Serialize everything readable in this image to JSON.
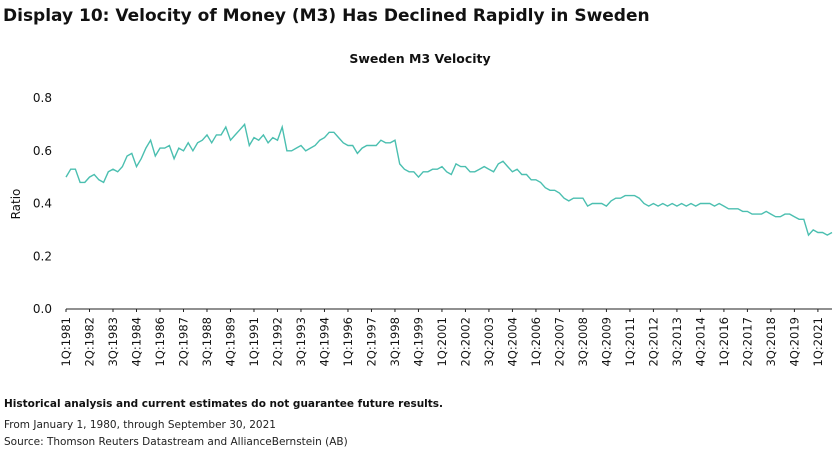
{
  "display_title": "Display 10: Velocity of Money (M3) Has Declined Rapidly in Sweden",
  "notes": {
    "disclaimer": "Historical analysis and current estimates do not guarantee future results.",
    "period": "From January 1, 1980, through September 30, 2021",
    "source": "Source: Thomson Reuters Datastream and AllianceBernstein (AB)"
  },
  "colors": {
    "line": "#4bbfb0",
    "axis": "#222222",
    "text": "#111111"
  },
  "chart_data": {
    "type": "line",
    "title": "Sweden M3 Velocity",
    "xlabel": "",
    "ylabel": "Ratio",
    "ylim": [
      0,
      0.8
    ],
    "yticks": [
      "0.0",
      "0.2",
      "0.4",
      "0.6",
      "0.8"
    ],
    "grid": false,
    "x_tick_labels": [
      "1Q:1981",
      "2Q:1982",
      "3Q:1983",
      "4Q:1984",
      "1Q:1986",
      "2Q:1987",
      "3Q:1988",
      "4Q:1989",
      "1Q:1991",
      "2Q:1992",
      "3Q:1993",
      "4Q:1994",
      "1Q:1996",
      "2Q:1997",
      "3Q:1998",
      "4Q:1999",
      "1Q:2001",
      "2Q:2002",
      "3Q:2003",
      "4Q:2004",
      "1Q:2006",
      "2Q:2007",
      "3Q:2008",
      "4Q:2009",
      "1Q:2011",
      "2Q:2012",
      "3Q:2013",
      "4Q:2014",
      "1Q:2016",
      "2Q:2017",
      "3Q:2018",
      "4Q:2019",
      "1Q:2021"
    ],
    "x_start_quarter": "1Q:1981",
    "series": [
      {
        "values": [
          0.5,
          0.53,
          0.53,
          0.48,
          0.48,
          0.5,
          0.51,
          0.49,
          0.48,
          0.52,
          0.53,
          0.52,
          0.54,
          0.58,
          0.59,
          0.54,
          0.57,
          0.61,
          0.64,
          0.58,
          0.61,
          0.61,
          0.62,
          0.57,
          0.61,
          0.6,
          0.63,
          0.6,
          0.63,
          0.64,
          0.66,
          0.63,
          0.66,
          0.66,
          0.69,
          0.64,
          0.66,
          0.68,
          0.7,
          0.62,
          0.65,
          0.64,
          0.66,
          0.63,
          0.65,
          0.64,
          0.69,
          0.6,
          0.6,
          0.61,
          0.62,
          0.6,
          0.61,
          0.62,
          0.64,
          0.65,
          0.67,
          0.67,
          0.65,
          0.63,
          0.62,
          0.62,
          0.59,
          0.61,
          0.62,
          0.62,
          0.62,
          0.64,
          0.63,
          0.63,
          0.64,
          0.55,
          0.53,
          0.52,
          0.52,
          0.5,
          0.52,
          0.52,
          0.53,
          0.53,
          0.54,
          0.52,
          0.51,
          0.55,
          0.54,
          0.54,
          0.52,
          0.52,
          0.53,
          0.54,
          0.53,
          0.52,
          0.55,
          0.56,
          0.54,
          0.52,
          0.53,
          0.51,
          0.51,
          0.49,
          0.49,
          0.48,
          0.46,
          0.45,
          0.45,
          0.44,
          0.42,
          0.41,
          0.42,
          0.42,
          0.42,
          0.39,
          0.4,
          0.4,
          0.4,
          0.39,
          0.41,
          0.42,
          0.42,
          0.43,
          0.43,
          0.43,
          0.42,
          0.4,
          0.39,
          0.4,
          0.39,
          0.4,
          0.39,
          0.4,
          0.39,
          0.4,
          0.39,
          0.4,
          0.39,
          0.4,
          0.4,
          0.4,
          0.39,
          0.4,
          0.39,
          0.38,
          0.38,
          0.38,
          0.37,
          0.37,
          0.36,
          0.36,
          0.36,
          0.37,
          0.36,
          0.35,
          0.35,
          0.36,
          0.36,
          0.35,
          0.34,
          0.34,
          0.28,
          0.3,
          0.29,
          0.29,
          0.28,
          0.29
        ]
      }
    ]
  }
}
